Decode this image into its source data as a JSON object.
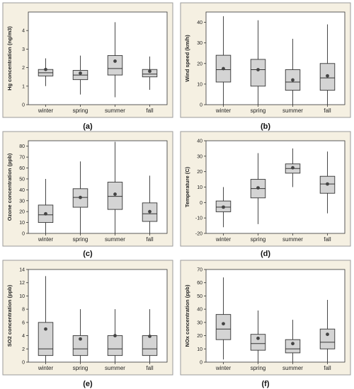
{
  "chart_data": [
    {
      "type": "boxplot",
      "panel_label": "(a)",
      "ylabel": "Hg concentration (ng/m3)",
      "ylim": [
        0,
        5
      ],
      "yticks": [
        0,
        1,
        2,
        3,
        4
      ],
      "categories": [
        "winter",
        "spring",
        "summer",
        "fall"
      ],
      "boxes": [
        {
          "min": 1.0,
          "q1": 1.55,
          "median": 1.72,
          "q3": 1.9,
          "max": 2.5,
          "mean": 1.9
        },
        {
          "min": 0.55,
          "q1": 1.35,
          "median": 1.6,
          "q3": 1.85,
          "max": 2.65,
          "mean": 1.7
        },
        {
          "min": 0.4,
          "q1": 1.6,
          "median": 1.95,
          "q3": 2.65,
          "max": 4.45,
          "mean": 2.35
        },
        {
          "min": 0.8,
          "q1": 1.5,
          "median": 1.65,
          "q3": 1.9,
          "max": 2.6,
          "mean": 1.8
        }
      ]
    },
    {
      "type": "boxplot",
      "panel_label": "(b)",
      "ylabel": "Wind speed (km/h)",
      "ylim": [
        0,
        45
      ],
      "yticks": [
        0,
        10,
        20,
        30,
        40
      ],
      "categories": [
        "winter",
        "spring",
        "summer",
        "fall"
      ],
      "boxes": [
        {
          "min": 0,
          "q1": 11,
          "median": 17,
          "q3": 24,
          "max": 43,
          "mean": 17.5
        },
        {
          "min": 0,
          "q1": 9,
          "median": 17,
          "q3": 22,
          "max": 41,
          "mean": 17
        },
        {
          "min": 0,
          "q1": 7,
          "median": 11,
          "q3": 17,
          "max": 32,
          "mean": 12
        },
        {
          "min": 0,
          "q1": 7,
          "median": 13,
          "q3": 20,
          "max": 39,
          "mean": 14
        }
      ]
    },
    {
      "type": "boxplot",
      "panel_label": "(c)",
      "ylabel": "Ozone concentration (ppb)",
      "ylim": [
        0,
        85
      ],
      "yticks": [
        0,
        10,
        20,
        30,
        40,
        50,
        60,
        70,
        80
      ],
      "categories": [
        "winter",
        "spring",
        "summer",
        "fall"
      ],
      "boxes": [
        {
          "min": 0,
          "q1": 10,
          "median": 17,
          "q3": 26,
          "max": 50,
          "mean": 18
        },
        {
          "min": 0,
          "q1": 24,
          "median": 33,
          "q3": 41,
          "max": 66,
          "mean": 33
        },
        {
          "min": 0,
          "q1": 22,
          "median": 34,
          "q3": 47,
          "max": 84,
          "mean": 36
        },
        {
          "min": 0,
          "q1": 11,
          "median": 18,
          "q3": 28,
          "max": 53,
          "mean": 20
        }
      ]
    },
    {
      "type": "boxplot",
      "panel_label": "(d)",
      "ylabel": "Temperature (C)",
      "ylim": [
        -20,
        40
      ],
      "yticks": [
        -20,
        -10,
        0,
        10,
        20,
        30,
        40
      ],
      "categories": [
        "winter",
        "spring",
        "summer",
        "fall"
      ],
      "boxes": [
        {
          "min": -16,
          "q1": -6,
          "median": -3,
          "q3": 1,
          "max": 10,
          "mean": -3
        },
        {
          "min": -14,
          "q1": 3,
          "median": 9,
          "q3": 15,
          "max": 32,
          "mean": 9.5
        },
        {
          "min": 10,
          "q1": 19,
          "median": 22,
          "q3": 25,
          "max": 35,
          "mean": 22.5
        },
        {
          "min": -7,
          "q1": 6,
          "median": 12,
          "q3": 17,
          "max": 33,
          "mean": 12
        }
      ]
    },
    {
      "type": "boxplot",
      "panel_label": "(e)",
      "ylabel": "SO2 concentration (ppb)",
      "ylim": [
        0,
        14
      ],
      "yticks": [
        0,
        2,
        4,
        6,
        8,
        10,
        12,
        14
      ],
      "categories": [
        "winter",
        "spring",
        "summer",
        "fall"
      ],
      "boxes": [
        {
          "min": 0,
          "q1": 1,
          "median": 2,
          "q3": 6,
          "max": 13,
          "mean": 5
        },
        {
          "min": 0,
          "q1": 1,
          "median": 2,
          "q3": 4,
          "max": 8,
          "mean": 3.5
        },
        {
          "min": 0,
          "q1": 1,
          "median": 2,
          "q3": 4,
          "max": 8,
          "mean": 4
        },
        {
          "min": 0,
          "q1": 1,
          "median": 2,
          "q3": 4,
          "max": 8,
          "mean": 3.9
        }
      ]
    },
    {
      "type": "boxplot",
      "panel_label": "(f)",
      "ylabel": "NOx concentration (ppb)",
      "ylim": [
        0,
        70
      ],
      "yticks": [
        0,
        10,
        20,
        30,
        40,
        50,
        60,
        70
      ],
      "categories": [
        "winter",
        "spring",
        "summer",
        "fall"
      ],
      "boxes": [
        {
          "min": 2,
          "q1": 17,
          "median": 25,
          "q3": 36,
          "max": 64,
          "mean": 29
        },
        {
          "min": 0,
          "q1": 9,
          "median": 14,
          "q3": 21,
          "max": 39,
          "mean": 18
        },
        {
          "min": 0,
          "q1": 7,
          "median": 10,
          "q3": 17,
          "max": 32,
          "mean": 14
        },
        {
          "min": 0,
          "q1": 10,
          "median": 15,
          "q3": 25,
          "max": 47,
          "mean": 21
        }
      ]
    }
  ],
  "colors": {
    "panel_background": "#f5f0e2",
    "panel_border": "#9a9a9a",
    "plot_background": "#ffffff",
    "box_fill": "#d4d4d4",
    "stroke": "#333333",
    "mean_marker": "#444444"
  }
}
